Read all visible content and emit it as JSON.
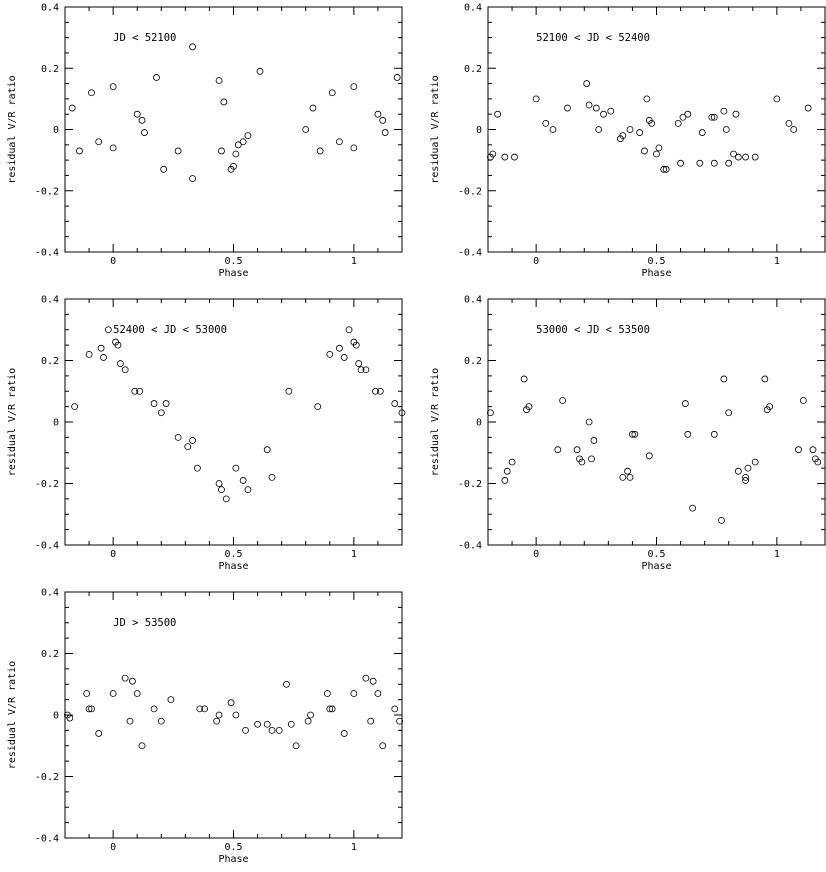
{
  "chart_data": [
    {
      "type": "scatter",
      "label": "JD < 52100",
      "xlabel": "Phase",
      "ylabel": "residual V/R ratio",
      "xlim": [
        -0.2,
        1.2
      ],
      "ylim": [
        -0.4,
        0.4
      ],
      "xticks": [
        "0",
        "0.5",
        "1"
      ],
      "yticks": [
        "-0.4",
        "-0.2",
        "0",
        "0.2",
        "0.4"
      ],
      "marker": "open-circle",
      "x": [
        -0.17,
        -0.14,
        -0.09,
        -0.06,
        0.0,
        0.0,
        0.1,
        0.12,
        0.13,
        0.18,
        0.21,
        0.27,
        0.33,
        0.33,
        0.44,
        0.45,
        0.46,
        0.49,
        0.5,
        0.51,
        0.52,
        0.54,
        0.56,
        0.61,
        0.8,
        0.83,
        0.86,
        0.91,
        0.94,
        1.0,
        1.0,
        1.1,
        1.12,
        1.13,
        1.18
      ],
      "y": [
        0.07,
        -0.07,
        0.12,
        -0.04,
        0.14,
        -0.06,
        0.05,
        0.03,
        -0.01,
        0.17,
        -0.13,
        -0.07,
        0.27,
        -0.16,
        0.16,
        -0.07,
        0.09,
        -0.13,
        -0.12,
        -0.08,
        -0.05,
        -0.04,
        -0.02,
        0.19,
        0.0,
        0.07,
        -0.07,
        0.12,
        -0.04,
        0.14,
        -0.06,
        0.05,
        0.03,
        -0.01,
        0.17
      ]
    },
    {
      "type": "scatter",
      "label": "52100 < JD < 52400",
      "xlabel": "Phase",
      "ylabel": "residual V/R ratio",
      "xlim": [
        -0.2,
        1.2
      ],
      "ylim": [
        -0.4,
        0.4
      ],
      "xticks": [
        "0",
        "0.5",
        "1"
      ],
      "yticks": [
        "-0.4",
        "-0.2",
        "0",
        "0.2",
        "0.4"
      ],
      "marker": "open-circle",
      "x": [
        -0.19,
        -0.18,
        -0.16,
        -0.13,
        -0.09,
        0.0,
        0.04,
        0.07,
        0.13,
        0.21,
        0.22,
        0.25,
        0.26,
        0.28,
        0.31,
        0.35,
        0.36,
        0.39,
        0.43,
        0.45,
        0.46,
        0.47,
        0.48,
        0.5,
        0.51,
        0.53,
        0.54,
        0.59,
        0.6,
        0.61,
        0.63,
        0.68,
        0.69,
        0.73,
        0.74,
        0.74,
        0.78,
        0.79,
        0.8,
        0.82,
        0.83,
        0.84,
        0.87,
        0.91,
        1.0,
        1.05,
        1.07,
        1.13
      ],
      "y": [
        -0.09,
        -0.08,
        0.05,
        -0.09,
        -0.09,
        0.1,
        0.02,
        0.0,
        0.07,
        0.15,
        0.08,
        0.07,
        0.0,
        0.05,
        0.06,
        -0.03,
        -0.02,
        0.0,
        -0.01,
        -0.07,
        0.1,
        0.03,
        0.02,
        -0.08,
        -0.06,
        -0.13,
        -0.13,
        0.02,
        -0.11,
        0.04,
        0.05,
        -0.11,
        -0.01,
        0.04,
        0.04,
        -0.11,
        0.06,
        0.0,
        -0.11,
        -0.08,
        0.05,
        -0.09,
        -0.09,
        -0.09,
        0.1,
        0.02,
        0.0,
        0.07
      ]
    },
    {
      "type": "scatter",
      "label": "52400 < JD < 53000",
      "xlabel": "Phase",
      "ylabel": "residual V/R ratio",
      "xlim": [
        -0.2,
        1.2
      ],
      "ylim": [
        -0.4,
        0.4
      ],
      "xticks": [
        "0",
        "0.5",
        "1"
      ],
      "yticks": [
        "-0.4",
        "-0.2",
        "0",
        "0.2",
        "0.4"
      ],
      "marker": "open-circle",
      "x": [
        -0.16,
        -0.1,
        -0.05,
        -0.04,
        -0.02,
        0.01,
        0.02,
        0.03,
        0.05,
        0.09,
        0.11,
        0.17,
        0.2,
        0.22,
        0.27,
        0.31,
        0.33,
        0.35,
        0.44,
        0.45,
        0.47,
        0.51,
        0.54,
        0.56,
        0.64,
        0.66,
        0.73,
        0.85,
        0.9,
        0.94,
        0.96,
        0.98,
        1.0,
        1.01,
        1.02,
        1.03,
        1.05,
        1.09,
        1.11,
        1.17,
        1.2
      ],
      "y": [
        0.05,
        0.22,
        0.24,
        0.21,
        0.3,
        0.26,
        0.25,
        0.19,
        0.17,
        0.1,
        0.1,
        0.06,
        0.03,
        0.06,
        -0.05,
        -0.08,
        -0.06,
        -0.15,
        -0.2,
        -0.22,
        -0.25,
        -0.15,
        -0.19,
        -0.22,
        -0.09,
        -0.18,
        0.1,
        0.05,
        0.22,
        0.24,
        0.21,
        0.3,
        0.26,
        0.25,
        0.19,
        0.17,
        0.17,
        0.1,
        0.1,
        0.06,
        0.03
      ]
    },
    {
      "type": "scatter",
      "label": "53000 < JD < 53500",
      "xlabel": "Phase",
      "ylabel": "residual V/R ratio",
      "xlim": [
        -0.2,
        1.2
      ],
      "ylim": [
        -0.4,
        0.4
      ],
      "xticks": [
        "0",
        "0.5",
        "1"
      ],
      "yticks": [
        "-0.4",
        "-0.2",
        "0",
        "0.2",
        "0.4"
      ],
      "marker": "open-circle",
      "x": [
        -0.19,
        -0.13,
        -0.12,
        -0.1,
        -0.05,
        -0.04,
        -0.03,
        0.09,
        0.11,
        0.17,
        0.18,
        0.19,
        0.22,
        0.23,
        0.24,
        0.36,
        0.38,
        0.39,
        0.4,
        0.41,
        0.47,
        0.62,
        0.63,
        0.65,
        0.74,
        0.77,
        0.78,
        0.8,
        0.84,
        0.87,
        0.87,
        0.88,
        0.91,
        0.95,
        0.96,
        0.97,
        1.09,
        1.11,
        1.15,
        1.16,
        1.17
      ],
      "y": [
        0.03,
        -0.19,
        -0.16,
        -0.13,
        0.14,
        0.04,
        0.05,
        -0.09,
        0.07,
        -0.09,
        -0.12,
        -0.13,
        0.0,
        -0.12,
        -0.06,
        -0.18,
        -0.16,
        -0.18,
        -0.04,
        -0.04,
        -0.11,
        0.06,
        -0.04,
        -0.28,
        -0.04,
        -0.32,
        0.14,
        0.03,
        -0.16,
        -0.19,
        -0.18,
        -0.15,
        -0.13,
        0.14,
        0.04,
        0.05,
        -0.09,
        0.07,
        -0.09,
        -0.12,
        -0.13
      ]
    },
    {
      "type": "scatter",
      "label": "JD > 53500",
      "xlabel": "Phase",
      "ylabel": "residual V/R ratio",
      "xlim": [
        -0.2,
        1.2
      ],
      "ylim": [
        -0.4,
        0.4
      ],
      "xticks": [
        "0",
        "0.5",
        "1"
      ],
      "yticks": [
        "-0.4",
        "-0.2",
        "0",
        "0.2",
        "0.4"
      ],
      "marker": "open-circle",
      "x": [
        -0.19,
        -0.18,
        -0.11,
        -0.1,
        -0.09,
        -0.06,
        0.0,
        0.05,
        0.07,
        0.08,
        0.1,
        0.12,
        0.17,
        0.2,
        0.24,
        0.36,
        0.38,
        0.43,
        0.44,
        0.49,
        0.51,
        0.55,
        0.6,
        0.64,
        0.66,
        0.69,
        0.72,
        0.74,
        0.76,
        0.81,
        0.82,
        0.89,
        0.9,
        0.91,
        0.96,
        1.0,
        1.05,
        1.07,
        1.08,
        1.1,
        1.12,
        1.17,
        1.19
      ],
      "y": [
        0.0,
        -0.01,
        0.07,
        0.02,
        0.02,
        -0.06,
        0.07,
        0.12,
        -0.02,
        0.11,
        0.07,
        -0.1,
        0.02,
        -0.02,
        0.05,
        0.02,
        0.02,
        -0.02,
        0.0,
        0.04,
        0.0,
        -0.05,
        -0.03,
        -0.03,
        -0.05,
        -0.05,
        0.1,
        -0.03,
        -0.1,
        -0.02,
        0.0,
        0.07,
        0.02,
        0.02,
        -0.06,
        0.07,
        0.12,
        -0.02,
        0.11,
        0.07,
        -0.1,
        0.02,
        -0.02
      ]
    }
  ]
}
